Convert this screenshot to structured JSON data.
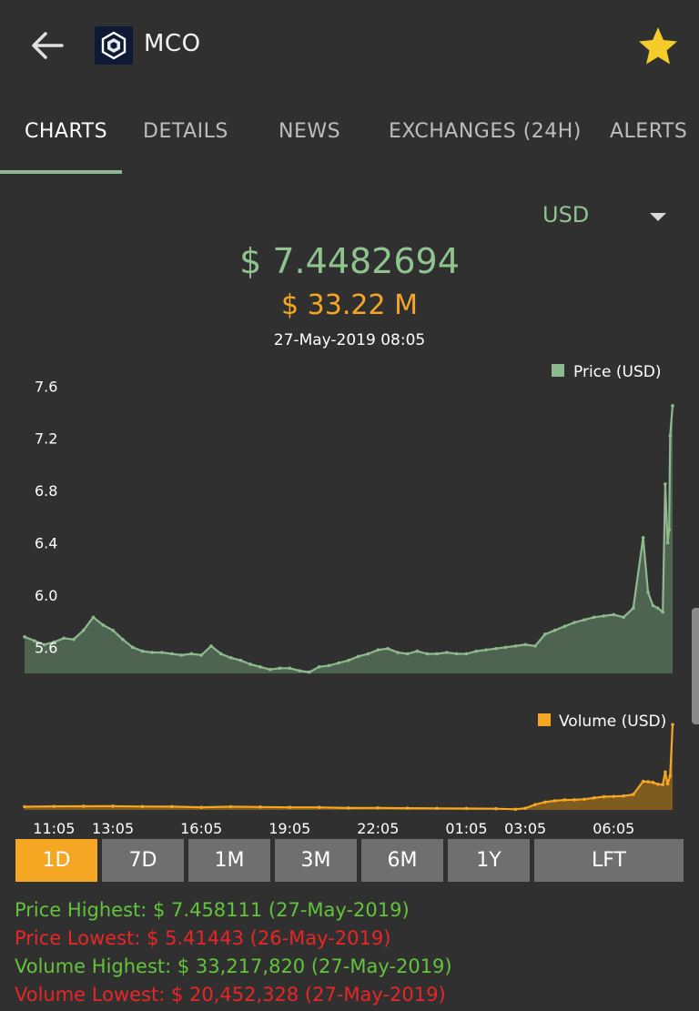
{
  "header": {
    "coin_symbol": "MCO",
    "back_icon": "arrow-left-icon",
    "logo_icon": "crypto-com-logo-icon",
    "favorite_icon": "star-icon",
    "favorite_color": "#f5cc2a"
  },
  "tabs": [
    {
      "label": "CHARTS",
      "active": true
    },
    {
      "label": "DETAILS",
      "active": false
    },
    {
      "label": "NEWS",
      "active": false
    },
    {
      "label": "EXCHANGES (24H)",
      "active": false
    },
    {
      "label": "ALERTS",
      "active": false
    }
  ],
  "currency": {
    "selected": "USD",
    "caret_icon": "caret-down-icon"
  },
  "summary": {
    "price": "$ 7.4482694",
    "volume": "$ 33.22 M",
    "timestamp": "27-May-2019 08:05"
  },
  "colors": {
    "price_line": "#8fb98f",
    "price_fill": "#4f6450",
    "volume_line": "#f5a623",
    "volume_fill": "#7e5c1f",
    "active_period": "#f5a623",
    "period_button": "#6f6f6f",
    "highest": "#62c43a",
    "lowest": "#ea2525"
  },
  "chart_data": [
    {
      "type": "area",
      "legend": "Price (USD)",
      "legend_position": "top-right",
      "yticks": [
        5.6,
        6.0,
        6.4,
        6.8,
        7.2,
        7.6
      ],
      "ylim": [
        5.4,
        7.7
      ],
      "points": [
        [
          "10:05",
          5.68
        ],
        [
          "10:25",
          5.65
        ],
        [
          "10:45",
          5.62
        ],
        [
          "11:05",
          5.64
        ],
        [
          "11:25",
          5.67
        ],
        [
          "11:45",
          5.66
        ],
        [
          "12:05",
          5.73
        ],
        [
          "12:25",
          5.83
        ],
        [
          "12:45",
          5.77
        ],
        [
          "13:05",
          5.73
        ],
        [
          "13:25",
          5.66
        ],
        [
          "13:45",
          5.6
        ],
        [
          "14:05",
          5.57
        ],
        [
          "14:25",
          5.56
        ],
        [
          "14:45",
          5.56
        ],
        [
          "15:05",
          5.55
        ],
        [
          "15:25",
          5.54
        ],
        [
          "15:45",
          5.55
        ],
        [
          "16:05",
          5.54
        ],
        [
          "16:25",
          5.61
        ],
        [
          "16:45",
          5.55
        ],
        [
          "17:05",
          5.52
        ],
        [
          "17:25",
          5.5
        ],
        [
          "17:45",
          5.47
        ],
        [
          "18:05",
          5.45
        ],
        [
          "18:25",
          5.43
        ],
        [
          "18:45",
          5.44
        ],
        [
          "19:05",
          5.44
        ],
        [
          "19:25",
          5.42
        ],
        [
          "19:45",
          5.41
        ],
        [
          "20:05",
          5.45
        ],
        [
          "20:25",
          5.46
        ],
        [
          "20:45",
          5.48
        ],
        [
          "21:05",
          5.5
        ],
        [
          "21:25",
          5.53
        ],
        [
          "21:45",
          5.55
        ],
        [
          "22:05",
          5.58
        ],
        [
          "22:25",
          5.59
        ],
        [
          "22:45",
          5.56
        ],
        [
          "23:05",
          5.55
        ],
        [
          "23:25",
          5.57
        ],
        [
          "23:45",
          5.55
        ],
        [
          "00:05",
          5.55
        ],
        [
          "00:25",
          5.56
        ],
        [
          "00:45",
          5.55
        ],
        [
          "01:05",
          5.55
        ],
        [
          "01:25",
          5.57
        ],
        [
          "01:45",
          5.58
        ],
        [
          "02:05",
          5.59
        ],
        [
          "02:25",
          5.6
        ],
        [
          "02:45",
          5.61
        ],
        [
          "03:05",
          5.62
        ],
        [
          "03:25",
          5.61
        ],
        [
          "03:45",
          5.7
        ],
        [
          "04:05",
          5.73
        ],
        [
          "04:25",
          5.76
        ],
        [
          "04:45",
          5.79
        ],
        [
          "05:05",
          5.81
        ],
        [
          "05:25",
          5.83
        ],
        [
          "05:45",
          5.84
        ],
        [
          "06:05",
          5.85
        ],
        [
          "06:25",
          5.83
        ],
        [
          "06:45",
          5.9
        ],
        [
          "07:05",
          6.44
        ],
        [
          "07:15",
          6.02
        ],
        [
          "07:25",
          5.92
        ],
        [
          "07:35",
          5.9
        ],
        [
          "07:45",
          5.87
        ],
        [
          "07:50",
          6.85
        ],
        [
          "07:55",
          6.4
        ],
        [
          "07:58",
          6.5
        ],
        [
          "08:00",
          7.22
        ],
        [
          "08:05",
          7.45
        ]
      ]
    },
    {
      "type": "area",
      "legend": "Volume (USD)",
      "legend_position": "top-right",
      "xticks": [
        "11:05",
        "13:05",
        "16:05",
        "19:05",
        "22:05",
        "01:05",
        "03:05",
        "06:05"
      ],
      "ylim": [
        20400000,
        33400000
      ],
      "points": [
        [
          "10:05",
          20880000
        ],
        [
          "11:05",
          20930000
        ],
        [
          "12:05",
          20950000
        ],
        [
          "13:05",
          20960000
        ],
        [
          "14:05",
          20910000
        ],
        [
          "15:05",
          20890000
        ],
        [
          "16:05",
          20790000
        ],
        [
          "17:05",
          20880000
        ],
        [
          "18:05",
          20840000
        ],
        [
          "19:05",
          20780000
        ],
        [
          "20:05",
          20780000
        ],
        [
          "21:05",
          20690000
        ],
        [
          "22:05",
          20700000
        ],
        [
          "23:05",
          20660000
        ],
        [
          "00:05",
          20630000
        ],
        [
          "01:05",
          20610000
        ],
        [
          "02:05",
          20580000
        ],
        [
          "02:45",
          20500000
        ],
        [
          "03:05",
          20640000
        ],
        [
          "03:25",
          21200000
        ],
        [
          "03:45",
          21570000
        ],
        [
          "04:05",
          21770000
        ],
        [
          "04:25",
          21900000
        ],
        [
          "04:45",
          21920000
        ],
        [
          "05:05",
          22000000
        ],
        [
          "05:25",
          22200000
        ],
        [
          "05:45",
          22380000
        ],
        [
          "06:05",
          22420000
        ],
        [
          "06:25",
          22490000
        ],
        [
          "06:45",
          22720000
        ],
        [
          "07:05",
          24680000
        ],
        [
          "07:15",
          24630000
        ],
        [
          "07:25",
          24530000
        ],
        [
          "07:35",
          24260000
        ],
        [
          "07:45",
          24200000
        ],
        [
          "07:50",
          26090000
        ],
        [
          "07:55",
          24310000
        ],
        [
          "08:00",
          25490000
        ],
        [
          "08:05",
          33220000
        ]
      ]
    }
  ],
  "periods": [
    {
      "label": "1D",
      "active": true
    },
    {
      "label": "7D",
      "active": false
    },
    {
      "label": "1M",
      "active": false
    },
    {
      "label": "3M",
      "active": false
    },
    {
      "label": "6M",
      "active": false
    },
    {
      "label": "1Y",
      "active": false
    },
    {
      "label": "LFT",
      "active": false
    }
  ],
  "stats": {
    "price_highest": "Price Highest: $ 7.458111 (27-May-2019)",
    "price_lowest": "Price Lowest: $ 5.41443 (26-May-2019)",
    "volume_highest": "Volume Highest: $ 33,217,820 (27-May-2019)",
    "volume_lowest": "Volume Lowest: $ 20,452,328 (27-May-2019)"
  }
}
